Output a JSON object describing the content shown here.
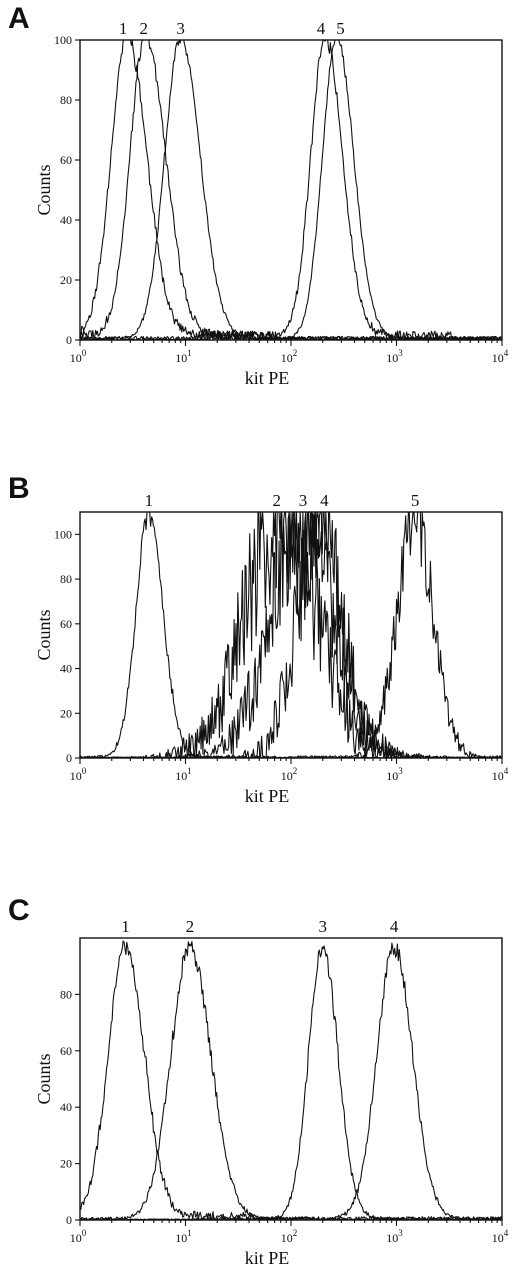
{
  "chart_data": [
    {
      "type": "line",
      "panel_label": "A",
      "xlabel": "kit PE",
      "ylabel": "Counts",
      "x_scale": "log",
      "xlim": [
        1,
        10000
      ],
      "ylim": [
        0,
        100
      ],
      "x_ticks": [
        {
          "base": "10",
          "exp": "0"
        },
        {
          "base": "10",
          "exp": "1"
        },
        {
          "base": "10",
          "exp": "2"
        },
        {
          "base": "10",
          "exp": "3"
        },
        {
          "base": "10",
          "exp": "4"
        }
      ],
      "y_ticks": [
        "0",
        "20",
        "40",
        "60",
        "80",
        "100"
      ],
      "series": [
        {
          "name": "1",
          "peak_x": 2.8,
          "peak_y": 100
        },
        {
          "name": "2",
          "peak_x": 4.2,
          "peak_y": 100
        },
        {
          "name": "3",
          "peak_x": 9.0,
          "peak_y": 100
        },
        {
          "name": "4",
          "peak_x": 210,
          "peak_y": 100
        },
        {
          "name": "5",
          "peak_x": 270,
          "peak_y": 100
        }
      ]
    },
    {
      "type": "line",
      "panel_label": "B",
      "xlabel": "kit PE",
      "ylabel": "Counts",
      "x_scale": "log",
      "xlim": [
        1,
        10000
      ],
      "ylim": [
        0,
        110
      ],
      "x_ticks": [
        {
          "base": "10",
          "exp": "0"
        },
        {
          "base": "10",
          "exp": "1"
        },
        {
          "base": "10",
          "exp": "2"
        },
        {
          "base": "10",
          "exp": "3"
        },
        {
          "base": "10",
          "exp": "4"
        }
      ],
      "y_ticks": [
        "0",
        "20",
        "40",
        "60",
        "80",
        "100"
      ],
      "series": [
        {
          "name": "1",
          "peak_x": 4.5,
          "peak_y": 108
        },
        {
          "name": "2",
          "peak_x": 80,
          "peak_y": 105
        },
        {
          "name": "3",
          "peak_x": 130,
          "peak_y": 105
        },
        {
          "name": "4",
          "peak_x": 190,
          "peak_y": 105
        },
        {
          "name": "5",
          "peak_x": 1500,
          "peak_y": 108
        }
      ]
    },
    {
      "type": "line",
      "panel_label": "C",
      "xlabel": "kit PE",
      "ylabel": "Counts",
      "x_scale": "log",
      "xlim": [
        1,
        10000
      ],
      "ylim": [
        0,
        100
      ],
      "x_ticks": [
        {
          "base": "10",
          "exp": "0"
        },
        {
          "base": "10",
          "exp": "1"
        },
        {
          "base": "10",
          "exp": "2"
        },
        {
          "base": "10",
          "exp": "3"
        },
        {
          "base": "10",
          "exp": "4"
        }
      ],
      "y_ticks": [
        "0",
        "20",
        "40",
        "60",
        "80"
      ],
      "series": [
        {
          "name": "1",
          "peak_x": 2.7,
          "peak_y": 96
        },
        {
          "name": "2",
          "peak_x": 11,
          "peak_y": 96
        },
        {
          "name": "3",
          "peak_x": 200,
          "peak_y": 96
        },
        {
          "name": "4",
          "peak_x": 950,
          "peak_y": 96
        }
      ]
    }
  ]
}
